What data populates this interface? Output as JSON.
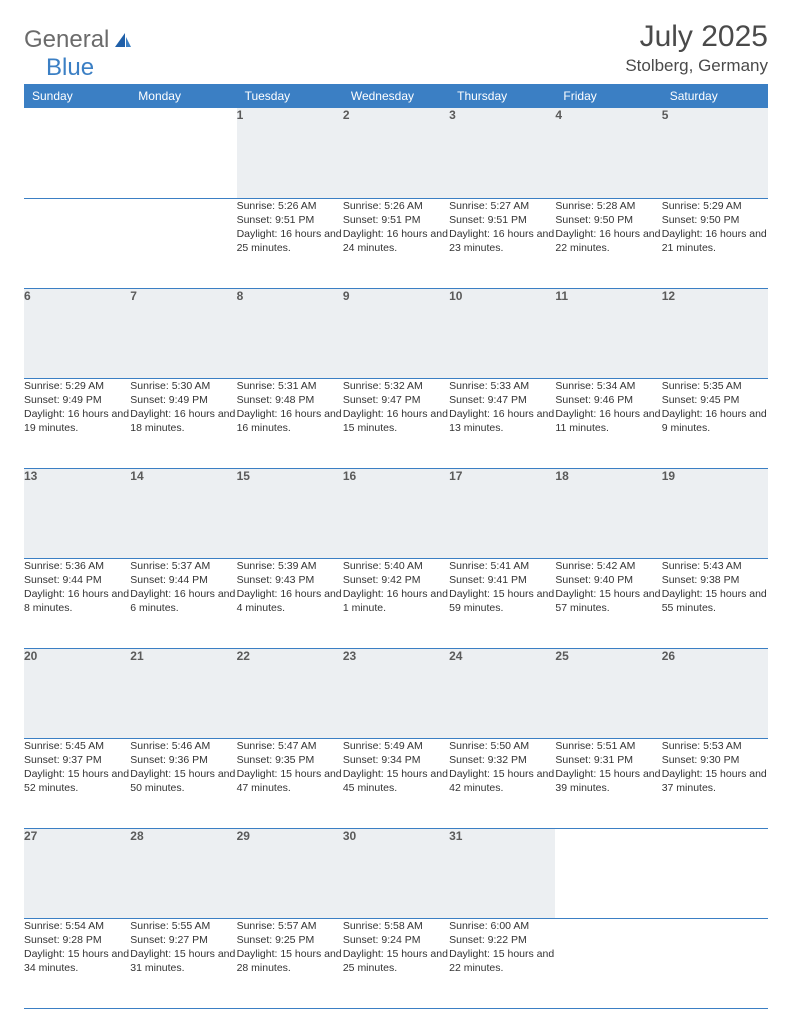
{
  "brand": {
    "part1": "General",
    "part2": "Blue"
  },
  "title": "July 2025",
  "location": "Stolberg, Germany",
  "colors": {
    "header_bg": "#3b7fc4",
    "header_text": "#ffffff",
    "daynum_bg": "#eceff2",
    "border": "#3b7fc4",
    "logo_gray": "#6b6b6b",
    "logo_blue": "#3b7fc4"
  },
  "weekdays": [
    "Sunday",
    "Monday",
    "Tuesday",
    "Wednesday",
    "Thursday",
    "Friday",
    "Saturday"
  ],
  "weeks": [
    [
      null,
      null,
      {
        "n": "1",
        "sr": "Sunrise: 5:26 AM",
        "ss": "Sunset: 9:51 PM",
        "dl": "Daylight: 16 hours and 25 minutes."
      },
      {
        "n": "2",
        "sr": "Sunrise: 5:26 AM",
        "ss": "Sunset: 9:51 PM",
        "dl": "Daylight: 16 hours and 24 minutes."
      },
      {
        "n": "3",
        "sr": "Sunrise: 5:27 AM",
        "ss": "Sunset: 9:51 PM",
        "dl": "Daylight: 16 hours and 23 minutes."
      },
      {
        "n": "4",
        "sr": "Sunrise: 5:28 AM",
        "ss": "Sunset: 9:50 PM",
        "dl": "Daylight: 16 hours and 22 minutes."
      },
      {
        "n": "5",
        "sr": "Sunrise: 5:29 AM",
        "ss": "Sunset: 9:50 PM",
        "dl": "Daylight: 16 hours and 21 minutes."
      }
    ],
    [
      {
        "n": "6",
        "sr": "Sunrise: 5:29 AM",
        "ss": "Sunset: 9:49 PM",
        "dl": "Daylight: 16 hours and 19 minutes."
      },
      {
        "n": "7",
        "sr": "Sunrise: 5:30 AM",
        "ss": "Sunset: 9:49 PM",
        "dl": "Daylight: 16 hours and 18 minutes."
      },
      {
        "n": "8",
        "sr": "Sunrise: 5:31 AM",
        "ss": "Sunset: 9:48 PM",
        "dl": "Daylight: 16 hours and 16 minutes."
      },
      {
        "n": "9",
        "sr": "Sunrise: 5:32 AM",
        "ss": "Sunset: 9:47 PM",
        "dl": "Daylight: 16 hours and 15 minutes."
      },
      {
        "n": "10",
        "sr": "Sunrise: 5:33 AM",
        "ss": "Sunset: 9:47 PM",
        "dl": "Daylight: 16 hours and 13 minutes."
      },
      {
        "n": "11",
        "sr": "Sunrise: 5:34 AM",
        "ss": "Sunset: 9:46 PM",
        "dl": "Daylight: 16 hours and 11 minutes."
      },
      {
        "n": "12",
        "sr": "Sunrise: 5:35 AM",
        "ss": "Sunset: 9:45 PM",
        "dl": "Daylight: 16 hours and 9 minutes."
      }
    ],
    [
      {
        "n": "13",
        "sr": "Sunrise: 5:36 AM",
        "ss": "Sunset: 9:44 PM",
        "dl": "Daylight: 16 hours and 8 minutes."
      },
      {
        "n": "14",
        "sr": "Sunrise: 5:37 AM",
        "ss": "Sunset: 9:44 PM",
        "dl": "Daylight: 16 hours and 6 minutes."
      },
      {
        "n": "15",
        "sr": "Sunrise: 5:39 AM",
        "ss": "Sunset: 9:43 PM",
        "dl": "Daylight: 16 hours and 4 minutes."
      },
      {
        "n": "16",
        "sr": "Sunrise: 5:40 AM",
        "ss": "Sunset: 9:42 PM",
        "dl": "Daylight: 16 hours and 1 minute."
      },
      {
        "n": "17",
        "sr": "Sunrise: 5:41 AM",
        "ss": "Sunset: 9:41 PM",
        "dl": "Daylight: 15 hours and 59 minutes."
      },
      {
        "n": "18",
        "sr": "Sunrise: 5:42 AM",
        "ss": "Sunset: 9:40 PM",
        "dl": "Daylight: 15 hours and 57 minutes."
      },
      {
        "n": "19",
        "sr": "Sunrise: 5:43 AM",
        "ss": "Sunset: 9:38 PM",
        "dl": "Daylight: 15 hours and 55 minutes."
      }
    ],
    [
      {
        "n": "20",
        "sr": "Sunrise: 5:45 AM",
        "ss": "Sunset: 9:37 PM",
        "dl": "Daylight: 15 hours and 52 minutes."
      },
      {
        "n": "21",
        "sr": "Sunrise: 5:46 AM",
        "ss": "Sunset: 9:36 PM",
        "dl": "Daylight: 15 hours and 50 minutes."
      },
      {
        "n": "22",
        "sr": "Sunrise: 5:47 AM",
        "ss": "Sunset: 9:35 PM",
        "dl": "Daylight: 15 hours and 47 minutes."
      },
      {
        "n": "23",
        "sr": "Sunrise: 5:49 AM",
        "ss": "Sunset: 9:34 PM",
        "dl": "Daylight: 15 hours and 45 minutes."
      },
      {
        "n": "24",
        "sr": "Sunrise: 5:50 AM",
        "ss": "Sunset: 9:32 PM",
        "dl": "Daylight: 15 hours and 42 minutes."
      },
      {
        "n": "25",
        "sr": "Sunrise: 5:51 AM",
        "ss": "Sunset: 9:31 PM",
        "dl": "Daylight: 15 hours and 39 minutes."
      },
      {
        "n": "26",
        "sr": "Sunrise: 5:53 AM",
        "ss": "Sunset: 9:30 PM",
        "dl": "Daylight: 15 hours and 37 minutes."
      }
    ],
    [
      {
        "n": "27",
        "sr": "Sunrise: 5:54 AM",
        "ss": "Sunset: 9:28 PM",
        "dl": "Daylight: 15 hours and 34 minutes."
      },
      {
        "n": "28",
        "sr": "Sunrise: 5:55 AM",
        "ss": "Sunset: 9:27 PM",
        "dl": "Daylight: 15 hours and 31 minutes."
      },
      {
        "n": "29",
        "sr": "Sunrise: 5:57 AM",
        "ss": "Sunset: 9:25 PM",
        "dl": "Daylight: 15 hours and 28 minutes."
      },
      {
        "n": "30",
        "sr": "Sunrise: 5:58 AM",
        "ss": "Sunset: 9:24 PM",
        "dl": "Daylight: 15 hours and 25 minutes."
      },
      {
        "n": "31",
        "sr": "Sunrise: 6:00 AM",
        "ss": "Sunset: 9:22 PM",
        "dl": "Daylight: 15 hours and 22 minutes."
      },
      null,
      null
    ]
  ]
}
